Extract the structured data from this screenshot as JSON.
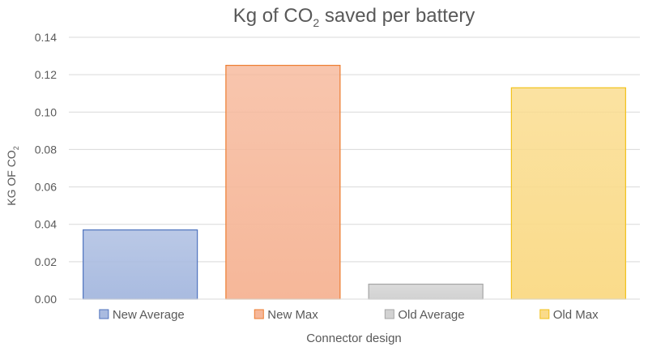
{
  "chart_data": {
    "type": "bar",
    "title_main": "Kg of CO",
    "title_sub": "2",
    "title_rest": " saved per battery",
    "ylabel_main": "KG OF CO",
    "ylabel_sub": "2",
    "xlabel": "Connector design",
    "ylim": [
      0,
      0.14
    ],
    "yticks": [
      "0.00",
      "0.02",
      "0.04",
      "0.06",
      "0.08",
      "0.10",
      "0.12",
      "0.14"
    ],
    "grid": true,
    "legend_position": "bottom",
    "series": [
      {
        "name": "New Average",
        "value": 0.037,
        "fill": "#a9bbe0",
        "stroke": "#4f73be"
      },
      {
        "name": "New Max",
        "value": 0.125,
        "fill": "#f6b799",
        "stroke": "#ed7d31"
      },
      {
        "name": "Old Average",
        "value": 0.008,
        "fill": "#d2d2d2",
        "stroke": "#a5a5a5"
      },
      {
        "name": "Old Max",
        "value": 0.113,
        "fill": "#fadb8a",
        "stroke": "#f2c21b"
      }
    ]
  }
}
